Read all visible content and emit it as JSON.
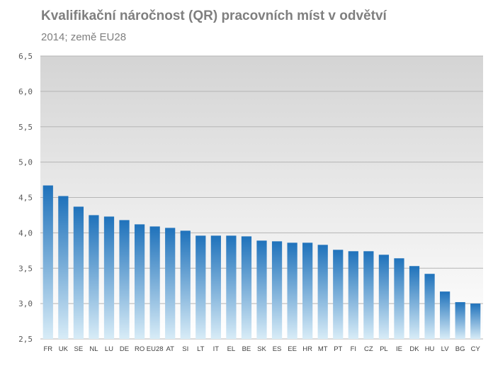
{
  "chart_data": {
    "type": "bar",
    "title": "Kvalifikační náročnost (QR) pracovních míst v odvětví",
    "subtitle": "2014; země EU28",
    "xlabel": "",
    "ylabel": "",
    "ylim": [
      2.5,
      6.5
    ],
    "yticks": [
      "2,5",
      "3,0",
      "3,5",
      "4,0",
      "4,5",
      "5,0",
      "5,5",
      "6,0",
      "6,5"
    ],
    "grid": true,
    "categories": [
      "FR",
      "UK",
      "SE",
      "NL",
      "LU",
      "DE",
      "RO",
      "EU28",
      "AT",
      "SI",
      "LT",
      "IT",
      "EL",
      "BE",
      "SK",
      "ES",
      "EE",
      "HR",
      "MT",
      "PT",
      "FI",
      "CZ",
      "PL",
      "IE",
      "DK",
      "HU",
      "LV",
      "BG",
      "CY"
    ],
    "values": [
      4.67,
      4.52,
      4.37,
      4.25,
      4.23,
      4.18,
      4.12,
      4.09,
      4.07,
      4.03,
      3.96,
      3.96,
      3.96,
      3.95,
      3.89,
      3.88,
      3.86,
      3.86,
      3.83,
      3.76,
      3.74,
      3.74,
      3.69,
      3.64,
      3.53,
      3.42,
      3.17,
      3.02,
      3.0
    ],
    "colors": {
      "bar_top": "#1f72bb",
      "bar_bottom": "#d8ecf7",
      "plot_bg_top": "#d4d4d4",
      "plot_bg_bottom": "#ffffff",
      "grid": "#b5b5b5"
    }
  }
}
